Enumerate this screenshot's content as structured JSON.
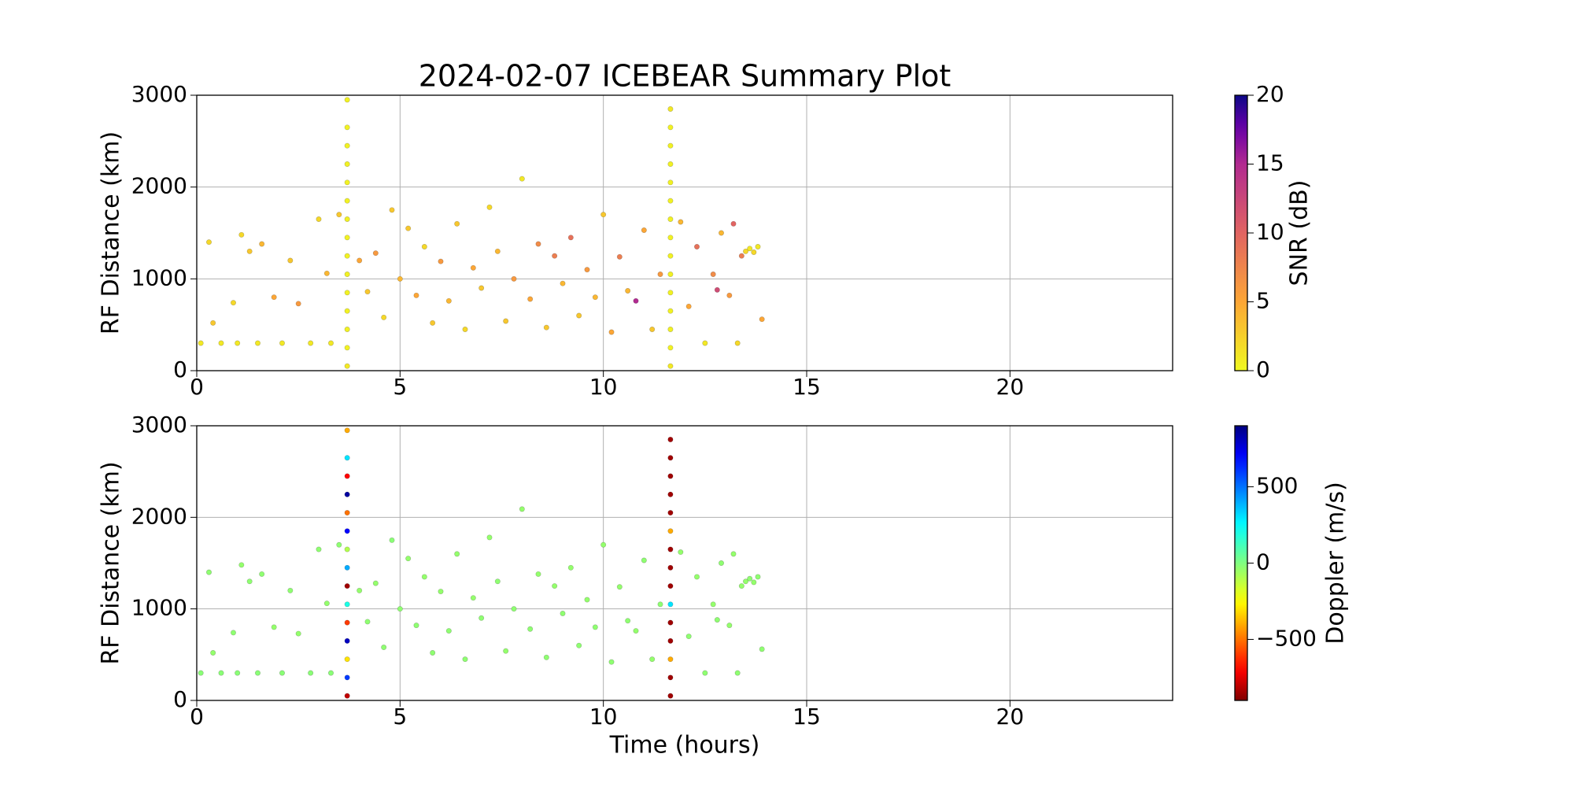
{
  "chart_data": [
    {
      "type": "scatter",
      "title": "2024-02-07 ICEBEAR Summary Plot",
      "ylabel": "RF Distance (km)",
      "xlim": [
        0,
        24
      ],
      "xticks": [
        0,
        5,
        10,
        15,
        20
      ],
      "ylim": [
        0,
        3000
      ],
      "yticks": [
        0,
        1000,
        2000,
        3000
      ],
      "grid": true,
      "x": [
        0.1,
        0.3,
        0.4,
        0.6,
        0.9,
        1.0,
        1.1,
        1.3,
        1.5,
        1.6,
        1.9,
        2.1,
        2.3,
        2.5,
        2.8,
        3.0,
        3.2,
        3.3,
        3.5,
        4.0,
        4.2,
        4.4,
        4.6,
        4.8,
        5.0,
        5.2,
        5.4,
        5.6,
        5.8,
        6.0,
        6.2,
        6.4,
        6.6,
        6.8,
        7.0,
        7.2,
        7.4,
        7.6,
        7.8,
        8.0,
        8.2,
        8.4,
        8.6,
        8.8,
        9.0,
        9.2,
        9.4,
        9.6,
        9.8,
        10.0,
        10.2,
        10.4,
        10.6,
        10.8,
        11.0,
        11.2,
        11.4,
        11.9,
        12.1,
        12.3,
        12.5,
        12.7,
        12.9,
        13.1,
        13.3,
        13.5,
        13.6,
        13.7,
        13.8,
        13.4,
        13.9,
        13.2,
        12.8,
        3.7,
        3.7,
        3.7,
        3.7,
        3.7,
        3.7,
        3.7,
        3.7,
        3.7,
        3.7,
        3.7,
        3.7,
        3.7,
        3.7,
        3.7,
        11.65,
        11.65,
        11.65,
        11.65,
        11.65,
        11.65,
        11.65,
        11.65,
        11.65,
        11.65,
        11.65,
        11.65,
        11.65,
        11.65,
        11.65
      ],
      "y": [
        300,
        1400,
        520,
        300,
        740,
        300,
        1480,
        1300,
        300,
        1380,
        800,
        300,
        1200,
        730,
        300,
        1650,
        1060,
        300,
        1700,
        1200,
        860,
        1280,
        580,
        1750,
        1000,
        1550,
        820,
        1350,
        520,
        1190,
        760,
        1600,
        450,
        1120,
        900,
        1780,
        1300,
        540,
        1000,
        2090,
        780,
        1380,
        470,
        1250,
        950,
        1450,
        600,
        1100,
        800,
        1700,
        420,
        1240,
        870,
        760,
        1530,
        450,
        1050,
        1620,
        700,
        1350,
        300,
        1050,
        1500,
        820,
        300,
        1300,
        1330,
        1290,
        1350,
        1250,
        560,
        1600,
        880,
        50,
        250,
        450,
        650,
        850,
        1050,
        1250,
        1450,
        1650,
        1850,
        2050,
        2250,
        2450,
        2650,
        2950,
        50,
        250,
        450,
        650,
        850,
        1050,
        1250,
        1450,
        1650,
        1850,
        2050,
        2250,
        2450,
        2650,
        2850
      ],
      "c": [
        1,
        2,
        3,
        1,
        2,
        1,
        2,
        3,
        1,
        4,
        5,
        1,
        3,
        6,
        1,
        2,
        4,
        1,
        3,
        5,
        3,
        6,
        2,
        3,
        4,
        3,
        5,
        2,
        3,
        6,
        4,
        3,
        2,
        5,
        3,
        2,
        4,
        3,
        6,
        1,
        5,
        7,
        3,
        8,
        4,
        9,
        3,
        6,
        4,
        3,
        5,
        8,
        4,
        15,
        5,
        3,
        6,
        4,
        5,
        9,
        1,
        7,
        4,
        6,
        2,
        2,
        1,
        2,
        1,
        8,
        5,
        10,
        12,
        1,
        0.5,
        0.5,
        0.5,
        0.5,
        0.5,
        0.5,
        0.5,
        0.5,
        0.5,
        0.5,
        0.5,
        0.5,
        0.5,
        0.5,
        1,
        0.5,
        0.5,
        0.5,
        0.5,
        0.5,
        0.5,
        0.5,
        0.5,
        0.5,
        0.5,
        0.5,
        0.5,
        0.5,
        1
      ],
      "colorbar": {
        "label": "SNR (dB)",
        "colormap": "plasma_r",
        "lim": [
          0,
          20
        ],
        "ticks": [
          0,
          5,
          10,
          15,
          20
        ]
      }
    },
    {
      "type": "scatter",
      "ylabel": "RF Distance (km)",
      "xlabel": "Time (hours)",
      "xlim": [
        0,
        24
      ],
      "xticks": [
        0,
        5,
        10,
        15,
        20
      ],
      "ylim": [
        0,
        3000
      ],
      "yticks": [
        0,
        1000,
        2000,
        3000
      ],
      "grid": true,
      "x": [
        0.1,
        0.3,
        0.4,
        0.6,
        0.9,
        1.0,
        1.1,
        1.3,
        1.5,
        1.6,
        1.9,
        2.1,
        2.3,
        2.5,
        2.8,
        3.0,
        3.2,
        3.3,
        3.5,
        4.0,
        4.2,
        4.4,
        4.6,
        4.8,
        5.0,
        5.2,
        5.4,
        5.6,
        5.8,
        6.0,
        6.2,
        6.4,
        6.6,
        6.8,
        7.0,
        7.2,
        7.4,
        7.6,
        7.8,
        8.0,
        8.2,
        8.4,
        8.6,
        8.8,
        9.0,
        9.2,
        9.4,
        9.6,
        9.8,
        10.0,
        10.2,
        10.4,
        10.6,
        10.8,
        11.0,
        11.2,
        11.4,
        11.9,
        12.1,
        12.3,
        12.5,
        12.7,
        12.9,
        13.1,
        13.3,
        13.5,
        13.6,
        13.7,
        13.8,
        13.4,
        13.9,
        13.2,
        12.8,
        3.7,
        3.7,
        3.7,
        3.7,
        3.7,
        3.7,
        3.7,
        3.7,
        3.7,
        3.7,
        3.7,
        3.7,
        3.7,
        3.7,
        3.7,
        11.65,
        11.65,
        11.65,
        11.65,
        11.65,
        11.65,
        11.65,
        11.65,
        11.65,
        11.65,
        11.65,
        11.65,
        11.65,
        11.65,
        11.65
      ],
      "y": [
        300,
        1400,
        520,
        300,
        740,
        300,
        1480,
        1300,
        300,
        1380,
        800,
        300,
        1200,
        730,
        300,
        1650,
        1060,
        300,
        1700,
        1200,
        860,
        1280,
        580,
        1750,
        1000,
        1550,
        820,
        1350,
        520,
        1190,
        760,
        1600,
        450,
        1120,
        900,
        1780,
        1300,
        540,
        1000,
        2090,
        780,
        1380,
        470,
        1250,
        950,
        1450,
        600,
        1100,
        800,
        1700,
        420,
        1240,
        870,
        760,
        1530,
        450,
        1050,
        1620,
        700,
        1350,
        300,
        1050,
        1500,
        820,
        300,
        1300,
        1330,
        1290,
        1350,
        1250,
        560,
        1600,
        880,
        50,
        250,
        450,
        650,
        850,
        1050,
        1250,
        1450,
        1650,
        1850,
        2050,
        2250,
        2450,
        2650,
        2950,
        50,
        250,
        450,
        650,
        850,
        1050,
        1250,
        1450,
        1650,
        1850,
        2050,
        2250,
        2450,
        2650,
        2850
      ],
      "c": [
        -20,
        -30,
        -40,
        -20,
        -30,
        -20,
        -40,
        -30,
        -20,
        -30,
        -40,
        -20,
        -30,
        -40,
        -20,
        -30,
        -40,
        -20,
        -30,
        -40,
        -30,
        -40,
        -30,
        -20,
        -30,
        -40,
        -30,
        -40,
        -30,
        -40,
        -30,
        -40,
        -30,
        -40,
        -30,
        -40,
        -30,
        -40,
        -30,
        -40,
        -30,
        -40,
        -30,
        -40,
        -30,
        -40,
        -30,
        -40,
        -30,
        -40,
        -30,
        -40,
        -30,
        -40,
        -30,
        -40,
        -30,
        -40,
        -30,
        -40,
        -30,
        -40,
        -30,
        -40,
        -30,
        -40,
        -30,
        -40,
        -30,
        -40,
        -30,
        -40,
        -30,
        -800,
        600,
        -300,
        800,
        -600,
        200,
        -850,
        400,
        -100,
        700,
        -500,
        850,
        -700,
        300,
        -400,
        -850,
        -850,
        -400,
        -850,
        -850,
        300,
        -850,
        -850,
        -850,
        -400,
        -850,
        -850,
        -850,
        -850,
        -850
      ],
      "colorbar": {
        "label": "Doppler (m/s)",
        "colormap": "jet_r",
        "lim": [
          -900,
          900
        ],
        "ticks": [
          {
            "value": -500,
            "label": "−500"
          },
          0,
          500
        ]
      }
    }
  ]
}
